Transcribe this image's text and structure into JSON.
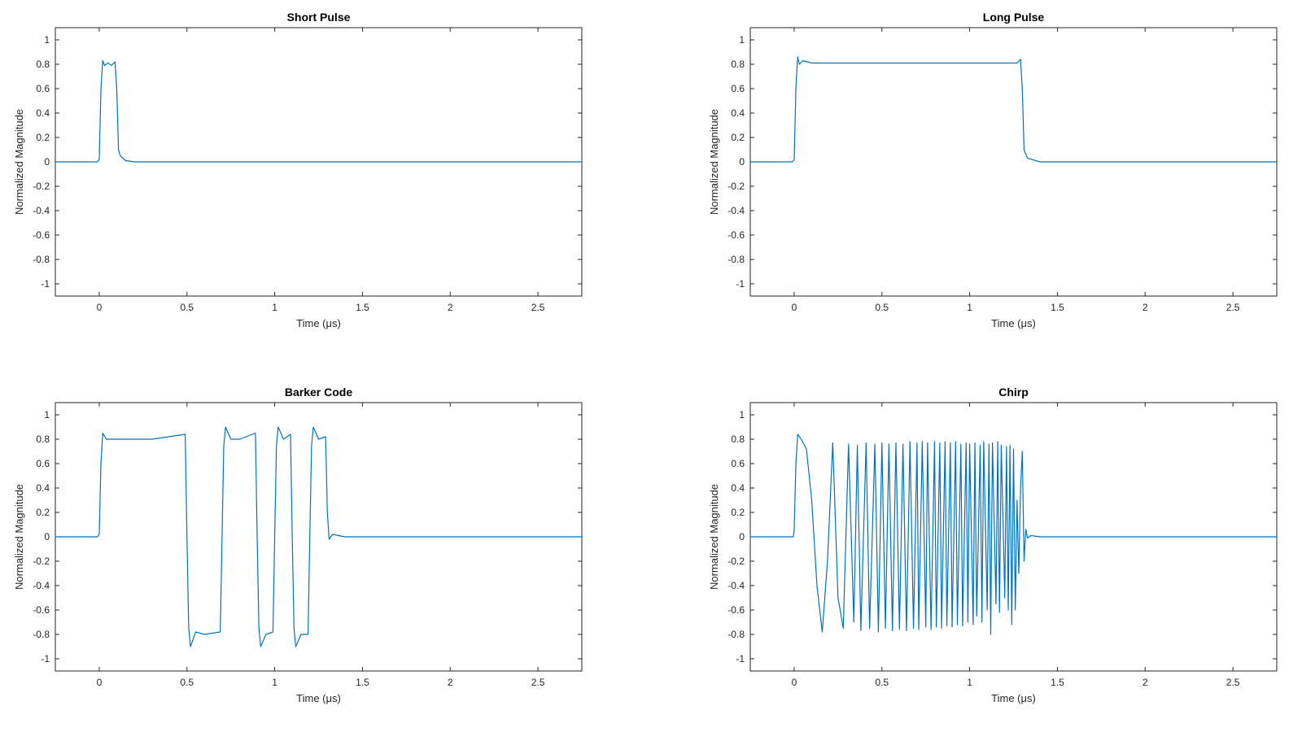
{
  "chart_data": [
    {
      "type": "line",
      "title": "Short Pulse",
      "xlabel": "Time (μs)",
      "ylabel": "Normalized Magnitude",
      "xlim": [
        -0.25,
        2.75
      ],
      "ylim": [
        -1.1,
        1.1
      ],
      "xticks": [
        0,
        0.5,
        1,
        1.5,
        2,
        2.5
      ],
      "xtick_labels": [
        "0",
        "0.5",
        "1",
        "1.5",
        "2",
        "2.5"
      ],
      "yticks": [
        1,
        0.8,
        0.6,
        0.4,
        0.2,
        0,
        -0.2,
        -0.4,
        -0.6,
        -0.8,
        -1
      ],
      "ytick_labels": [
        "1",
        "0.8",
        "0.6",
        "0.4",
        "0.2",
        "0",
        "-0.2",
        "-0.4",
        "-0.6",
        "-0.8",
        "-1"
      ],
      "grid": false,
      "color": "#0072BD",
      "series": [
        {
          "x": [
            -0.25,
            -0.01,
            0,
            0.01,
            0.02,
            0.03,
            0.05,
            0.07,
            0.09,
            0.1,
            0.11,
            0.12,
            0.15,
            0.2,
            2.75
          ],
          "y": [
            0,
            0,
            0.02,
            0.6,
            0.83,
            0.79,
            0.81,
            0.79,
            0.82,
            0.6,
            0.1,
            0.05,
            0.01,
            0,
            0
          ]
        }
      ]
    },
    {
      "type": "line",
      "title": "Long Pulse",
      "xlabel": "Time (μs)",
      "ylabel": "Normalized Magnitude",
      "xlim": [
        -0.25,
        2.75
      ],
      "ylim": [
        -1.1,
        1.1
      ],
      "xticks": [
        0,
        0.5,
        1,
        1.5,
        2,
        2.5
      ],
      "xtick_labels": [
        "0",
        "0.5",
        "1",
        "1.5",
        "2",
        "2.5"
      ],
      "yticks": [
        1,
        0.8,
        0.6,
        0.4,
        0.2,
        0,
        -0.2,
        -0.4,
        -0.6,
        -0.8,
        -1
      ],
      "ytick_labels": [
        "1",
        "0.8",
        "0.6",
        "0.4",
        "0.2",
        "0",
        "-0.2",
        "-0.4",
        "-0.6",
        "-0.8",
        "-1"
      ],
      "grid": false,
      "color": "#0072BD",
      "series": [
        {
          "x": [
            -0.25,
            -0.01,
            0,
            0.01,
            0.02,
            0.03,
            0.05,
            0.1,
            0.5,
            1.0,
            1.27,
            1.29,
            1.3,
            1.31,
            1.33,
            1.4,
            2.75
          ],
          "y": [
            0,
            0,
            0.02,
            0.6,
            0.86,
            0.8,
            0.83,
            0.81,
            0.81,
            0.81,
            0.81,
            0.84,
            0.6,
            0.1,
            0.03,
            0,
            0
          ]
        }
      ]
    },
    {
      "type": "line",
      "title": "Barker Code",
      "xlabel": "Time (μs)",
      "ylabel": "Normalized Magnitude",
      "xlim": [
        -0.25,
        2.75
      ],
      "ylim": [
        -1.1,
        1.1
      ],
      "xticks": [
        0,
        0.5,
        1,
        1.5,
        2,
        2.5
      ],
      "xtick_labels": [
        "0",
        "0.5",
        "1",
        "1.5",
        "2",
        "2.5"
      ],
      "yticks": [
        1,
        0.8,
        0.6,
        0.4,
        0.2,
        0,
        -0.2,
        -0.4,
        -0.6,
        -0.8,
        -1
      ],
      "ytick_labels": [
        "1",
        "0.8",
        "0.6",
        "0.4",
        "0.2",
        "0",
        "-0.2",
        "-0.4",
        "-0.6",
        "-0.8",
        "-1"
      ],
      "grid": false,
      "color": "#0072BD",
      "series": [
        {
          "x": [
            -0.25,
            -0.01,
            0,
            0.01,
            0.02,
            0.04,
            0.1,
            0.3,
            0.49,
            0.5,
            0.51,
            0.52,
            0.55,
            0.6,
            0.69,
            0.7,
            0.71,
            0.72,
            0.75,
            0.8,
            0.89,
            0.9,
            0.91,
            0.92,
            0.95,
            0.99,
            1.0,
            1.01,
            1.02,
            1.05,
            1.09,
            1.1,
            1.11,
            1.12,
            1.15,
            1.19,
            1.2,
            1.21,
            1.22,
            1.25,
            1.29,
            1.3,
            1.31,
            1.33,
            1.4,
            2.75
          ],
          "y": [
            0,
            0,
            0.02,
            0.6,
            0.85,
            0.8,
            0.8,
            0.8,
            0.84,
            0,
            -0.75,
            -0.9,
            -0.78,
            -0.8,
            -0.78,
            0,
            0.75,
            0.9,
            0.8,
            0.8,
            0.85,
            0,
            -0.75,
            -0.9,
            -0.8,
            -0.78,
            0,
            0.75,
            0.9,
            0.8,
            0.84,
            0,
            -0.75,
            -0.9,
            -0.8,
            -0.8,
            0,
            0.75,
            0.9,
            0.8,
            0.82,
            0.2,
            -0.02,
            0.02,
            0,
            0
          ]
        }
      ]
    },
    {
      "type": "line",
      "title": "Chirp",
      "xlabel": "Time (μs)",
      "ylabel": "Normalized Magnitude",
      "xlim": [
        -0.25,
        2.75
      ],
      "ylim": [
        -1.1,
        1.1
      ],
      "xticks": [
        0,
        0.5,
        1,
        1.5,
        2,
        2.5
      ],
      "xtick_labels": [
        "0",
        "0.5",
        "1",
        "1.5",
        "2",
        "2.5"
      ],
      "yticks": [
        1,
        0.8,
        0.6,
        0.4,
        0.2,
        0,
        -0.2,
        -0.4,
        -0.6,
        -0.8,
        -1
      ],
      "ytick_labels": [
        "1",
        "0.8",
        "0.6",
        "0.4",
        "0.2",
        "0",
        "-0.2",
        "-0.4",
        "-0.6",
        "-0.8",
        "-1"
      ],
      "grid": false,
      "color": "#0072BD",
      "series": [
        {
          "x": [
            -0.25,
            -0.005,
            0,
            0.01,
            0.02,
            0.04,
            0.07,
            0.1,
            0.13,
            0.16,
            0.19,
            0.22,
            0.25,
            0.28,
            0.31,
            0.34,
            0.36,
            0.38,
            0.41,
            0.43,
            0.46,
            0.48,
            0.5,
            0.52,
            0.54,
            0.56,
            0.58,
            0.6,
            0.62,
            0.64,
            0.66,
            0.68,
            0.7,
            0.71,
            0.73,
            0.75,
            0.76,
            0.78,
            0.8,
            0.81,
            0.83,
            0.84,
            0.86,
            0.87,
            0.89,
            0.9,
            0.92,
            0.93,
            0.95,
            0.96,
            0.98,
            0.99,
            1.0,
            1.02,
            1.03,
            1.04,
            1.06,
            1.07,
            1.08,
            1.1,
            1.11,
            1.12,
            1.13,
            1.15,
            1.16,
            1.17,
            1.18,
            1.2,
            1.21,
            1.22,
            1.23,
            1.24,
            1.25,
            1.26,
            1.27,
            1.28,
            1.29,
            1.3,
            1.31,
            1.32,
            1.33,
            1.35,
            1.4,
            2.75
          ],
          "y": [
            0,
            0,
            0.05,
            0.6,
            0.84,
            0.8,
            0.72,
            0.3,
            -0.4,
            -0.78,
            -0.2,
            0.77,
            -0.5,
            -0.75,
            0.76,
            -0.7,
            0.75,
            -0.77,
            0.77,
            -0.75,
            0.76,
            -0.78,
            0.77,
            -0.75,
            0.76,
            -0.77,
            0.77,
            -0.76,
            0.76,
            -0.77,
            0.78,
            -0.75,
            0.77,
            -0.76,
            0.78,
            -0.74,
            0.77,
            -0.76,
            0.78,
            -0.74,
            0.77,
            -0.75,
            0.78,
            -0.73,
            0.77,
            -0.74,
            0.78,
            -0.72,
            0.76,
            -0.73,
            0.77,
            -0.7,
            0.76,
            -0.72,
            0.77,
            -0.65,
            0.75,
            -0.7,
            0.78,
            -0.6,
            0.76,
            -0.8,
            0.77,
            -0.55,
            0.78,
            -0.62,
            0.75,
            -0.5,
            0.74,
            -0.6,
            0.75,
            -0.72,
            0.72,
            -0.6,
            0.3,
            -0.3,
            0.4,
            0.7,
            -0.2,
            0.06,
            -0.01,
            0.01,
            0,
            0
          ]
        }
      ]
    }
  ]
}
